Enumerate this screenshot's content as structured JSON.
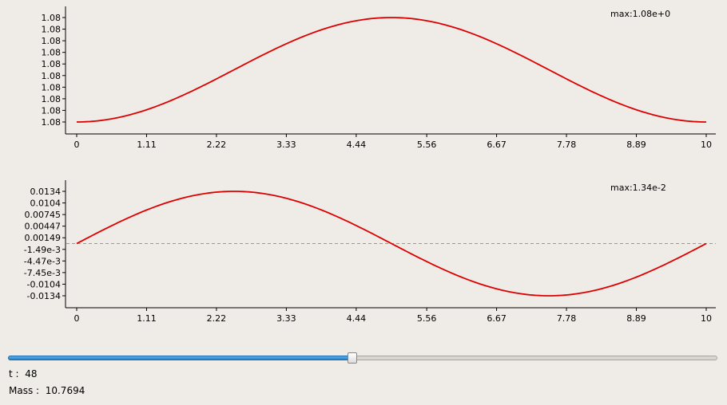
{
  "plots": [
    {
      "max_label": "max:1.08e+0",
      "x_ticks": [
        "0",
        "1.11",
        "2.22",
        "3.33",
        "4.44",
        "5.56",
        "6.67",
        "7.78",
        "8.89",
        "10"
      ],
      "y_ticks": [
        "1.08",
        "1.08",
        "1.08",
        "1.08",
        "1.08",
        "1.08",
        "1.08",
        "1.08",
        "1.08",
        "1.08"
      ],
      "zero_line": false
    },
    {
      "max_label": "max:1.34e-2",
      "x_ticks": [
        "0",
        "1.11",
        "2.22",
        "3.33",
        "4.44",
        "5.56",
        "6.67",
        "7.78",
        "8.89",
        "10"
      ],
      "y_ticks": [
        "0.0134",
        "0.0104",
        "0.00745",
        "0.00447",
        "0.00149",
        "-1.49e-3",
        "-4.47e-3",
        "-7.45e-3",
        "-0.0104",
        "-0.0134"
      ],
      "zero_line": true
    }
  ],
  "chart_data": [
    {
      "type": "line",
      "x_range": [
        0,
        10
      ],
      "series": [
        {
          "color": "#dd0000",
          "x": [
            0,
            1.11,
            2.22,
            3.33,
            4.44,
            5,
            5.56,
            6.67,
            7.78,
            8.89,
            10
          ],
          "y": [
            "1.08 (min)",
            "low",
            "rising",
            "rising",
            "near max",
            "1.08 (max)",
            "near max",
            "falling",
            "falling",
            "low",
            "1.08 (min)"
          ],
          "shape": "1 - cos(pi*x/5), normalized 0..1",
          "values_normalized": [
            0.0,
            0.117,
            0.413,
            0.766,
            0.97,
            1.0,
            0.97,
            0.766,
            0.413,
            0.117,
            0.0
          ]
        }
      ],
      "ylim_label": "1.08"
    },
    {
      "type": "line",
      "x_range": [
        0,
        10
      ],
      "ylim": [
        -0.0134,
        0.0134
      ],
      "series": [
        {
          "color": "#dd0000",
          "x": [
            0,
            1.11,
            2.22,
            2.5,
            3.33,
            4.44,
            5,
            5.56,
            6.67,
            7.5,
            7.78,
            8.89,
            10
          ],
          "y": [
            0,
            0.00857,
            0.0131,
            0.0134,
            0.0116,
            0.0046,
            0,
            -0.0046,
            -0.0116,
            -0.0134,
            -0.0131,
            -0.00857,
            0
          ]
        }
      ]
    }
  ],
  "slider": {
    "value": 48,
    "min": 0,
    "max": 99
  },
  "info": {
    "t_label": "t :",
    "t_value": "48",
    "mass_label": "Mass :",
    "mass_value": "10.7694"
  }
}
